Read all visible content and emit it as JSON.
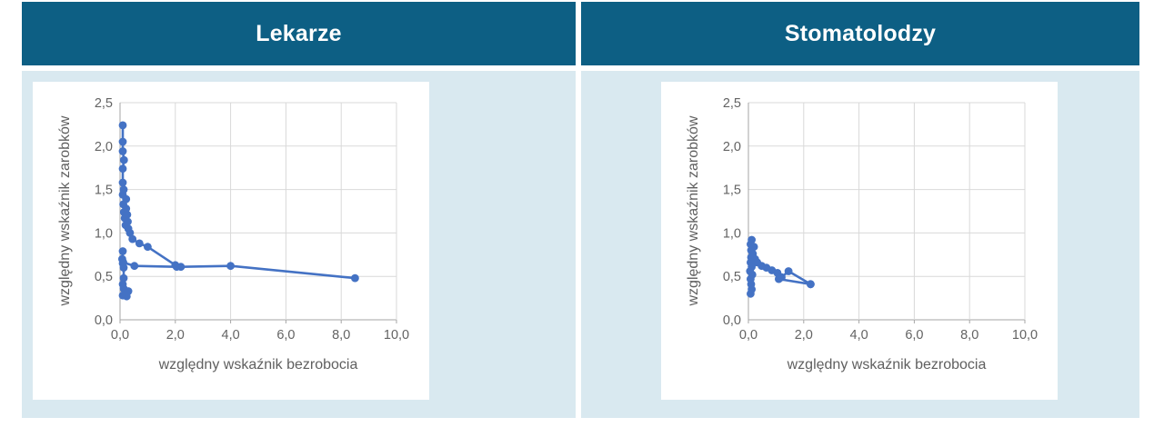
{
  "colors": {
    "header_bg": "#0d5f84",
    "header_text": "#ffffff",
    "panel_bg": "#d9e9f0",
    "card_bg": "#ffffff",
    "accent_blue": "#4472c4",
    "grid": "#d9d9d9",
    "axis": "#a6a6a6",
    "tick_text": "#636363"
  },
  "chart_data": [
    {
      "type": "scatter",
      "title": "Lekarze",
      "xlabel": "względny wskaźnik bezrobocia",
      "ylabel": "względny wskaźnik zarobków",
      "xlim": [
        0,
        10
      ],
      "ylim": [
        0,
        2.5
      ],
      "x_tick_labels": [
        "0,0",
        "2,0",
        "4,0",
        "6,0",
        "8,0",
        "10,0"
      ],
      "y_tick_labels": [
        "0,0",
        "0,5",
        "1,0",
        "1,5",
        "2,0",
        "2,5"
      ],
      "grid": true,
      "legend": false,
      "marker_color": "#4472c4",
      "series": [
        {
          "name": "main-descending-tail",
          "points": [
            [
              0.1,
              2.24
            ],
            [
              0.1,
              2.05
            ],
            [
              0.1,
              1.94
            ],
            [
              0.14,
              1.84
            ],
            [
              0.1,
              1.74
            ],
            [
              0.1,
              1.58
            ],
            [
              0.13,
              1.5
            ],
            [
              0.1,
              1.44
            ],
            [
              0.22,
              1.39
            ],
            [
              0.12,
              1.33
            ],
            [
              0.22,
              1.28
            ],
            [
              0.14,
              1.24
            ],
            [
              0.26,
              1.21
            ],
            [
              0.17,
              1.17
            ],
            [
              0.28,
              1.13
            ],
            [
              0.2,
              1.09
            ],
            [
              0.3,
              1.05
            ],
            [
              0.36,
              1.0
            ],
            [
              0.45,
              0.93
            ],
            [
              0.7,
              0.88
            ],
            [
              1.0,
              0.84
            ],
            [
              2.0,
              0.63
            ],
            [
              2.2,
              0.61
            ],
            [
              4.0,
              0.62
            ],
            [
              8.5,
              0.48
            ]
          ]
        },
        {
          "name": "plateau-line",
          "points": [
            [
              0.12,
              0.66
            ],
            [
              0.52,
              0.62
            ],
            [
              2.05,
              0.61
            ]
          ]
        },
        {
          "name": "lower-cluster",
          "points": [
            [
              0.1,
              0.79
            ],
            [
              0.08,
              0.7
            ],
            [
              0.1,
              0.65
            ],
            [
              0.13,
              0.6
            ],
            [
              0.13,
              0.48
            ],
            [
              0.1,
              0.41
            ],
            [
              0.13,
              0.36
            ],
            [
              0.3,
              0.33
            ],
            [
              0.1,
              0.28
            ],
            [
              0.24,
              0.27
            ]
          ]
        }
      ]
    },
    {
      "type": "scatter",
      "title": "Stomatolodzy",
      "xlabel": "względny wskaźnik bezrobocia",
      "ylabel": "względny wskaźnik zarobków",
      "xlim": [
        0,
        10
      ],
      "ylim": [
        0,
        2.5
      ],
      "x_tick_labels": [
        "0,0",
        "2,0",
        "4,0",
        "6,0",
        "8,0",
        "10,0"
      ],
      "y_tick_labels": [
        "0,0",
        "0,5",
        "1,0",
        "1,5",
        "2,0",
        "2,5"
      ],
      "grid": true,
      "legend": false,
      "marker_color": "#4472c4",
      "series": [
        {
          "name": "main-cluster-tail",
          "points": [
            [
              0.12,
              0.92
            ],
            [
              0.08,
              0.87
            ],
            [
              0.2,
              0.84
            ],
            [
              0.1,
              0.8
            ],
            [
              0.16,
              0.76
            ],
            [
              0.1,
              0.72
            ],
            [
              0.24,
              0.7
            ],
            [
              0.32,
              0.66
            ],
            [
              0.48,
              0.62
            ],
            [
              0.65,
              0.6
            ],
            [
              0.85,
              0.57
            ],
            [
              1.05,
              0.54
            ],
            [
              1.2,
              0.49
            ],
            [
              1.45,
              0.56
            ],
            [
              2.25,
              0.41
            ]
          ]
        },
        {
          "name": "left-column",
          "points": [
            [
              0.08,
              0.66
            ],
            [
              0.12,
              0.61
            ],
            [
              0.06,
              0.56
            ],
            [
              0.14,
              0.52
            ],
            [
              0.08,
              0.47
            ],
            [
              0.1,
              0.41
            ],
            [
              0.12,
              0.35
            ],
            [
              0.08,
              0.3
            ]
          ]
        },
        {
          "name": "lower-link",
          "points": [
            [
              1.1,
              0.47
            ],
            [
              2.25,
              0.41
            ]
          ]
        }
      ]
    }
  ]
}
